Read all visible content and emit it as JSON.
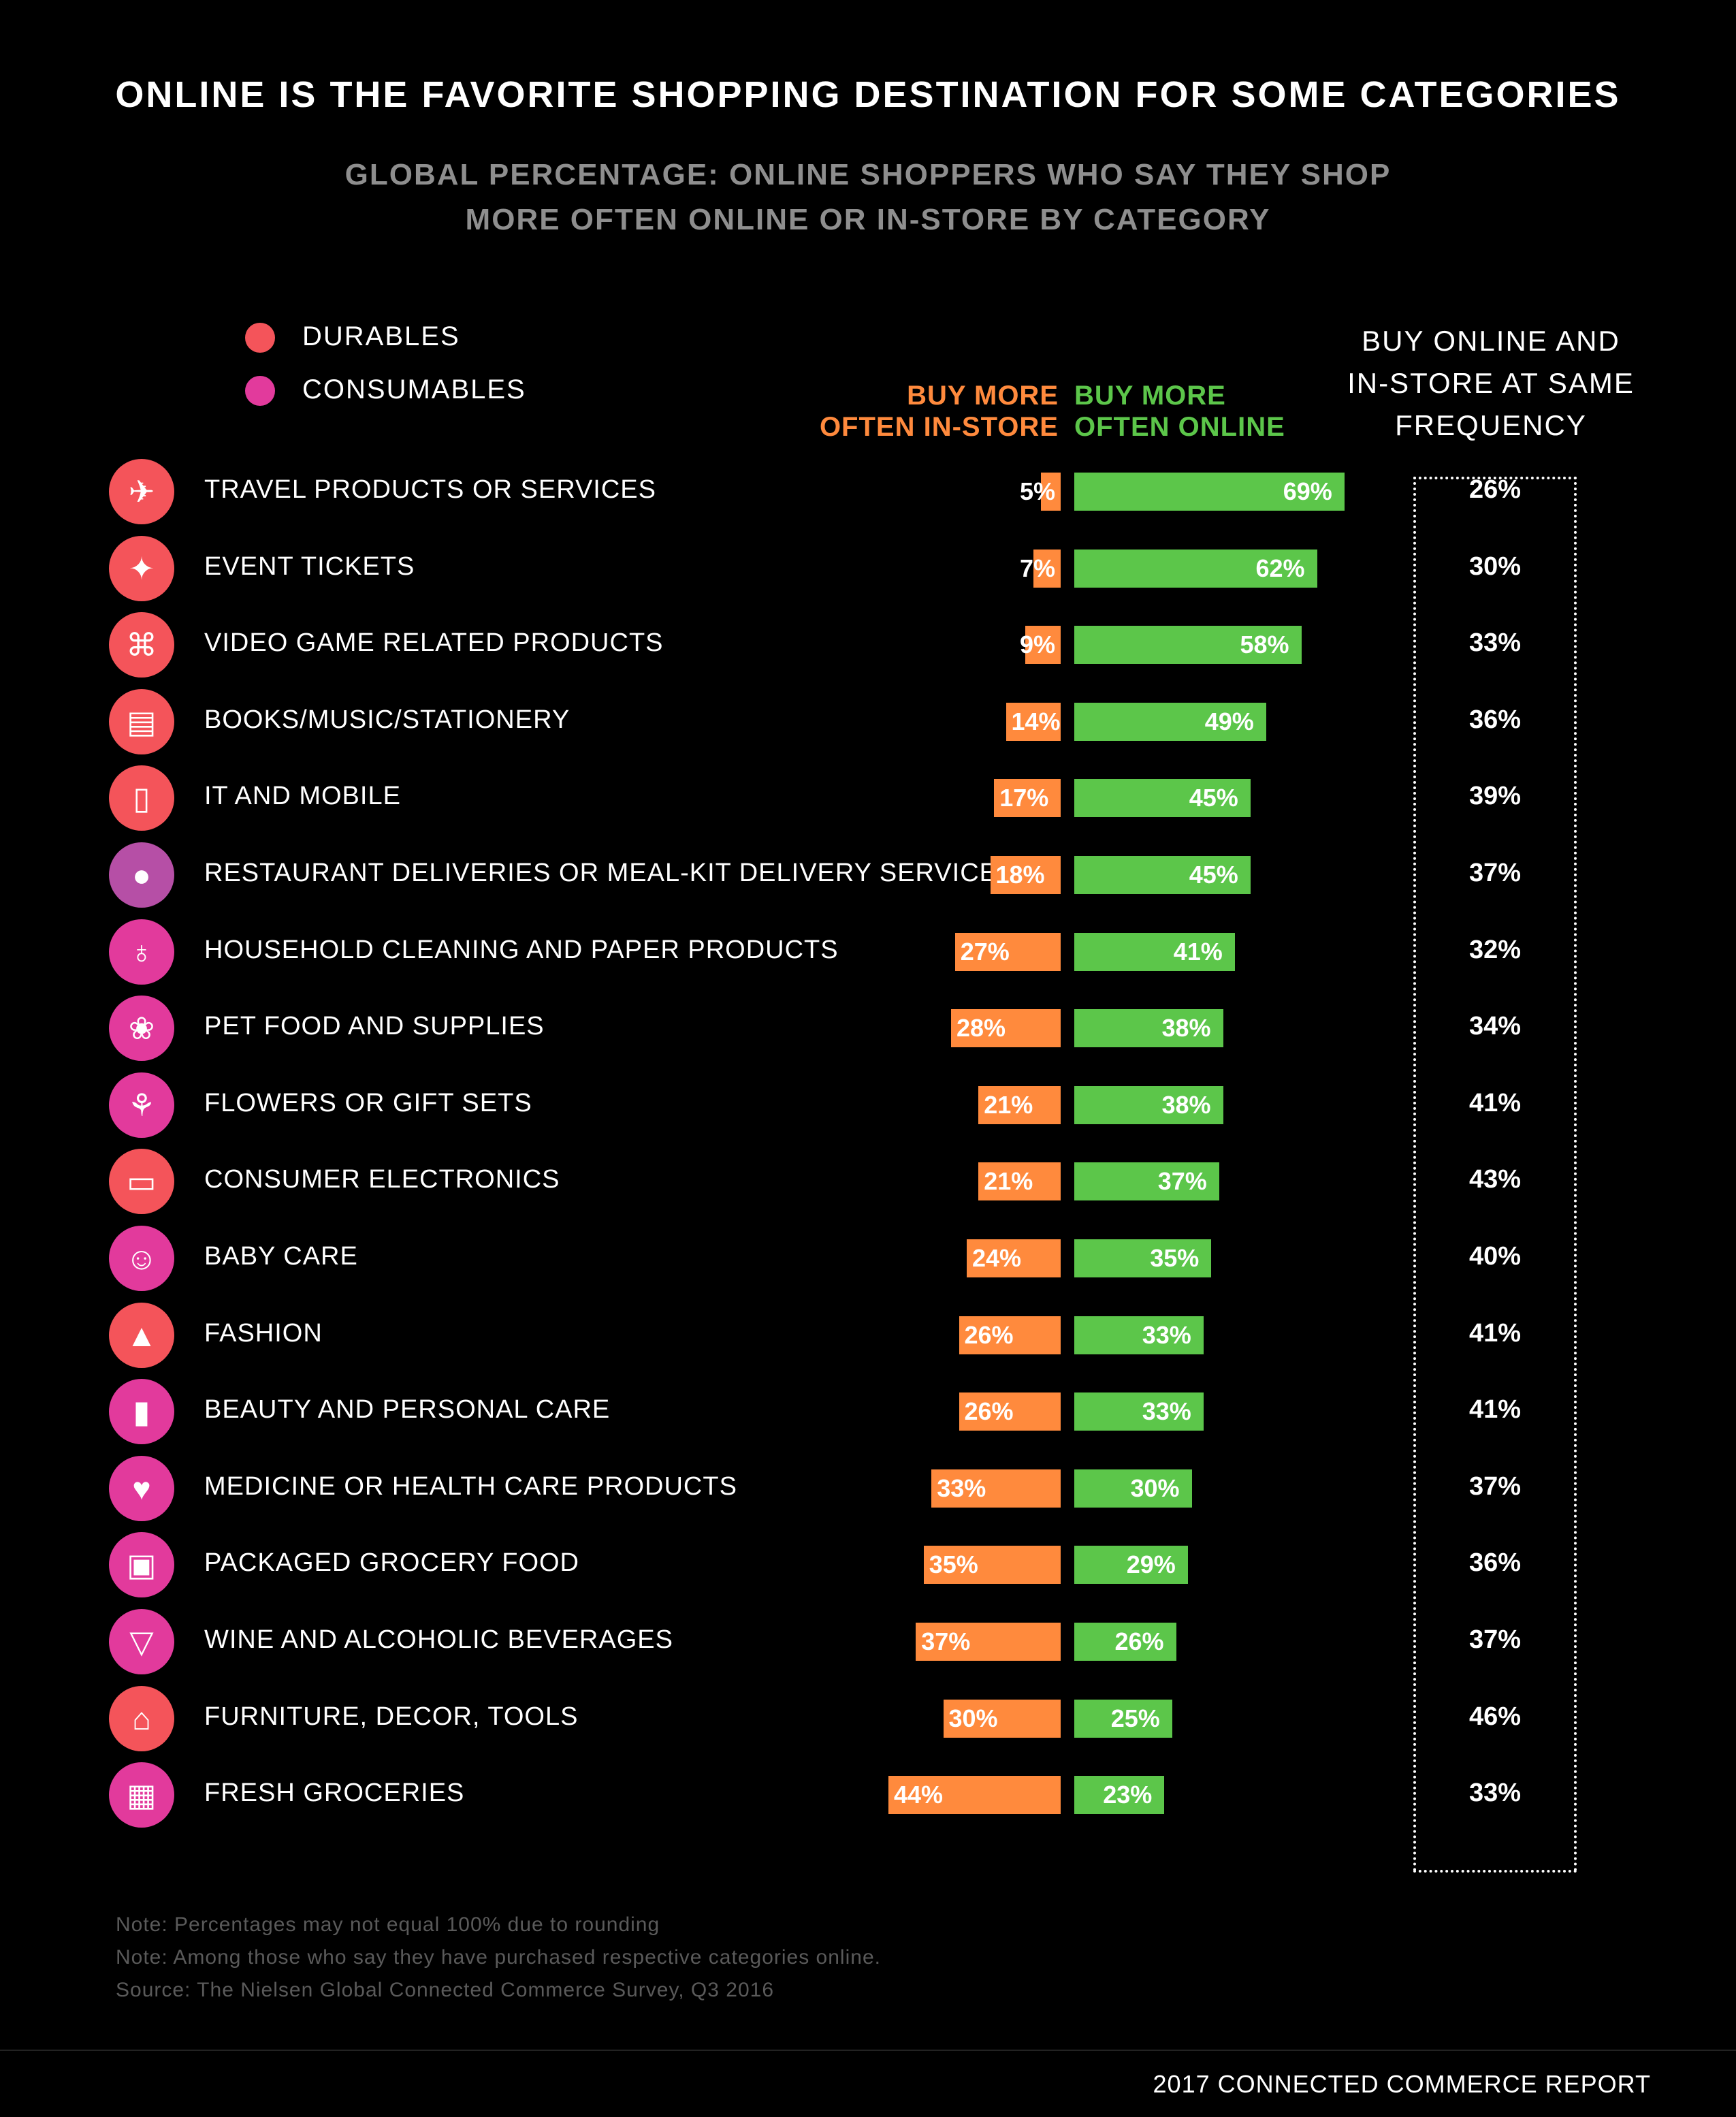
{
  "title": "ONLINE IS THE FAVORITE SHOPPING DESTINATION FOR SOME CATEGORIES",
  "subtitle_line1": "GLOBAL PERCENTAGE: ONLINE SHOPPERS WHO SAY THEY SHOP",
  "subtitle_line2": "MORE OFTEN ONLINE OR IN-STORE BY CATEGORY",
  "legend": {
    "durables": {
      "label": "DURABLES",
      "color": "#f4545a"
    },
    "consumables": {
      "label": "CONSUMABLES",
      "color": "#e23a9c"
    }
  },
  "headers": {
    "instore_line1": "BUY MORE",
    "instore_line2": "OFTEN IN-STORE",
    "online_line1": "BUY MORE",
    "online_line2": "OFTEN ONLINE",
    "same_line1": "BUY ONLINE AND",
    "same_line2": "IN-STORE AT SAME",
    "same_line3": "FREQUENCY"
  },
  "colors": {
    "instore": "#ff8a3d",
    "online": "#5cc64a",
    "restaurant_icon": "#b64fa6"
  },
  "chart_data": {
    "type": "bar",
    "categories": [
      "TRAVEL PRODUCTS OR SERVICES",
      "EVENT TICKETS",
      "VIDEO GAME RELATED PRODUCTS",
      "BOOKS/MUSIC/STATIONERY",
      "IT AND MOBILE",
      "RESTAURANT DELIVERIES OR MEAL-KIT DELIVERY SERVICES",
      "HOUSEHOLD CLEANING AND PAPER PRODUCTS",
      "PET FOOD AND SUPPLIES",
      "FLOWERS OR GIFT SETS",
      "CONSUMER ELECTRONICS",
      "BABY CARE",
      "FASHION",
      "BEAUTY AND PERSONAL CARE",
      "MEDICINE OR HEALTH CARE PRODUCTS",
      "PACKAGED GROCERY FOOD",
      "WINE AND ALCOHOLIC BEVERAGES",
      "FURNITURE, DECOR, TOOLS",
      "FRESH GROCERIES"
    ],
    "groups": [
      "durables",
      "durables",
      "durables",
      "durables",
      "durables",
      "restaurant",
      "consumables",
      "consumables",
      "consumables",
      "durables",
      "consumables",
      "durables",
      "consumables",
      "consumables",
      "consumables",
      "consumables",
      "durables",
      "consumables"
    ],
    "icons": [
      "airplane-icon",
      "ticket-icon",
      "gamepad-icon",
      "book-icon",
      "mobile-phone-icon",
      "plate-cutlery-icon",
      "cleaning-bottle-icon",
      "paw-icon",
      "bouquet-icon",
      "tv-monitor-icon",
      "baby-icon",
      "dress-icon",
      "lipstick-icon",
      "heartbeat-icon",
      "grocery-bag-icon",
      "wine-glass-icon",
      "sofa-icon",
      "basket-icon"
    ],
    "series": [
      {
        "name": "BUY MORE OFTEN IN-STORE",
        "values": [
          5,
          7,
          9,
          14,
          17,
          18,
          27,
          28,
          21,
          21,
          24,
          26,
          26,
          33,
          35,
          37,
          30,
          44
        ]
      },
      {
        "name": "BUY MORE OFTEN ONLINE",
        "values": [
          69,
          62,
          58,
          49,
          45,
          45,
          41,
          38,
          38,
          37,
          35,
          33,
          33,
          30,
          29,
          26,
          25,
          23
        ]
      },
      {
        "name": "BUY ONLINE AND IN-STORE AT SAME FREQUENCY",
        "values": [
          26,
          30,
          33,
          36,
          39,
          37,
          32,
          34,
          41,
          43,
          40,
          41,
          41,
          37,
          36,
          37,
          46,
          33
        ]
      }
    ],
    "unit": "%"
  },
  "notes": [
    "Note: Percentages may not equal 100% due to rounding",
    "Note: Among those who say they have purchased respective categories online.",
    "Source: The Nielsen Global Connected Commerce Survey, Q3 2016"
  ],
  "footer": "2017 CONNECTED COMMERCE REPORT"
}
